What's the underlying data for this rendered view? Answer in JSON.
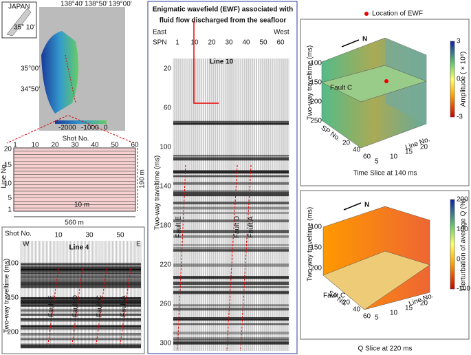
{
  "map_panel": {
    "inset_label": "JAPAN",
    "inset_coord": "35° 10'",
    "lon_labels": [
      "138°40'",
      "138°50'",
      "139°00'"
    ],
    "lat_labels": [
      "35°00'",
      "34°50'"
    ],
    "colorbar_labels": [
      "-2000",
      "-1000",
      "0"
    ]
  },
  "grid_panel": {
    "x_title": "Shot No.",
    "x_ticks": [
      1,
      10,
      20,
      30,
      40,
      50,
      60
    ],
    "y_title": "Line No.",
    "y_ticks": [
      1,
      5,
      10,
      15,
      20
    ],
    "spacing": "10 m",
    "width": "560 m",
    "height": "190 m"
  },
  "line4": {
    "title": "Line 4",
    "x_title": "Shot No.",
    "x_ticks": [
      10,
      30,
      50
    ],
    "west": "W",
    "east": "E",
    "y_title": "Two-way traveltime (ms)",
    "y_ticks": [
      100,
      150,
      200
    ],
    "faults": [
      "Fault E",
      "Fault D",
      "Fault C",
      "Fault A"
    ]
  },
  "line10": {
    "title_lines": [
      "Enigmatic wavefield (EWF) associated with",
      "fluid flow discharged from the seafloor"
    ],
    "label": "Line 10",
    "east": "East",
    "west": "West",
    "spn": "SPN",
    "x_ticks": [
      1,
      10,
      20,
      30,
      40,
      50,
      60
    ],
    "y_title": "Two-way traveltime (ms)",
    "y_ticks": [
      20,
      60,
      100,
      140,
      180,
      220,
      260,
      300
    ],
    "faults": [
      "Fault E",
      "Fault D",
      "Fault A"
    ]
  },
  "time_slice": {
    "legend": "Location of EWF",
    "north": "N",
    "y_title": "Two-way traveltime (ms)",
    "y_ticks": [
      100,
      150,
      200,
      250
    ],
    "x_title": "SP No.",
    "x_ticks": [
      20,
      40,
      60
    ],
    "line_title": "Line No.",
    "line_ticks": [
      5,
      10,
      15,
      20
    ],
    "fault": "Fault C",
    "colorbar_title": "Amplitude ( × 10⁶)",
    "colorbar_ticks": [
      3,
      0,
      -3
    ],
    "caption": "Time Slice at 140  ms"
  },
  "q_slice": {
    "north": "N",
    "y_title": "Two-way traveltime (ms)",
    "y_ticks": [
      100,
      150,
      200
    ],
    "x_title": "SP No.",
    "x_ticks": [
      20,
      40,
      60
    ],
    "line_title": "Line No.",
    "line_ticks": [
      5,
      10,
      15,
      20
    ],
    "fault": "Fault C",
    "colorbar_title": "Perturbation of average Q (%)",
    "colorbar_ticks": [
      200,
      100,
      0,
      -100
    ],
    "caption": "Q Slice at 220  ms"
  }
}
